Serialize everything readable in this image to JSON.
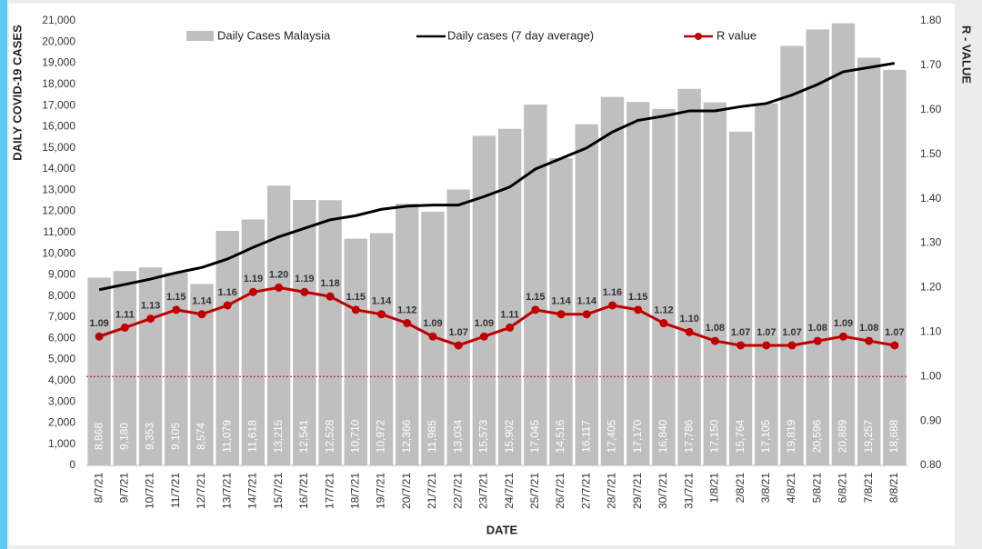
{
  "chart_data": {
    "type": "combo",
    "x_label": "DATE",
    "y_label": "DAILY COVID-19 CASES",
    "y2_label": "R - VALUE",
    "categories": [
      "8/7/21",
      "9/7/21",
      "10/7/21",
      "11/7/21",
      "12/7/21",
      "13/7/21",
      "14/7/21",
      "15/7/21",
      "16/7/21",
      "17/7/21",
      "18/7/21",
      "19/7/21",
      "20/7/21",
      "21/7/21",
      "22/7/21",
      "23/7/21",
      "24/7/21",
      "25/7/21",
      "26/7/21",
      "27/7/21",
      "28/7/21",
      "29/7/21",
      "30/7/21",
      "31/7/21",
      "1/8/21",
      "2/8/21",
      "3/8/21",
      "4/8/21",
      "5/8/21",
      "6/8/21",
      "7/8/21",
      "8/8/21"
    ],
    "series": [
      {
        "name": "Daily Cases Malaysia",
        "type": "bar",
        "color": "#bfbfbf",
        "values": [
          8868,
          9180,
          9353,
          9105,
          8574,
          11079,
          11618,
          13215,
          12541,
          12528,
          10710,
          10972,
          12366,
          11985,
          13034,
          15573,
          15902,
          17045,
          14516,
          16117,
          17405,
          17170,
          16840,
          17786,
          17150,
          15764,
          17105,
          19819,
          20596,
          20889,
          19257,
          18688
        ],
        "value_labels": [
          "8,868",
          "9,180",
          "9,353",
          "9,105",
          "8,574",
          "11,079",
          "11,618",
          "13,215",
          "12,541",
          "12,528",
          "10,710",
          "10,972",
          "12,366",
          "11,985",
          "13,034",
          "15,573",
          "15,902",
          "17,045",
          "14,516",
          "16,117",
          "17,405",
          "17,170",
          "16,840",
          "17,786",
          "17,150",
          "15,764",
          "17,105",
          "19,819",
          "20,596",
          "20,889",
          "19,257",
          "18,688"
        ]
      },
      {
        "name": "Daily cases (7 day average)",
        "type": "line",
        "color": "#000000",
        "values": [
          8300,
          8550,
          8800,
          9100,
          9350,
          9750,
          10300,
          10800,
          11200,
          11600,
          11800,
          12100,
          12250,
          12300,
          12300,
          12700,
          13150,
          14000,
          14500,
          15000,
          15750,
          16300,
          16500,
          16750,
          16750,
          16950,
          17100,
          17500,
          18000,
          18600,
          18800,
          19000
        ]
      },
      {
        "name": "R value",
        "type": "line",
        "axis": "y2",
        "color": "#c00000",
        "markers": true,
        "values": [
          1.09,
          1.11,
          1.13,
          1.15,
          1.14,
          1.16,
          1.19,
          1.2,
          1.19,
          1.18,
          1.15,
          1.14,
          1.12,
          1.09,
          1.07,
          1.09,
          1.11,
          1.15,
          1.14,
          1.14,
          1.16,
          1.15,
          1.12,
          1.1,
          1.08,
          1.07,
          1.07,
          1.07,
          1.08,
          1.09,
          1.08,
          1.07
        ],
        "value_labels": [
          "1.09",
          "1.11",
          "1.13",
          "1.15",
          "1.14",
          "1.16",
          "1.19",
          "1.20",
          "1.19",
          "1.18",
          "1.15",
          "1.14",
          "1.12",
          "1.09",
          "1.07",
          "1.09",
          "1.11",
          "1.15",
          "1.14",
          "1.14",
          "1.16",
          "1.15",
          "1.12",
          "1.10",
          "1.08",
          "1.07",
          "1.07",
          "1.07",
          "1.08",
          "1.09",
          "1.08",
          "1.07"
        ]
      }
    ],
    "ylim": [
      0,
      21000
    ],
    "yticks": [
      {
        "value": 0,
        "label": "0"
      },
      {
        "value": 1000,
        "label": "1,000"
      },
      {
        "value": 2000,
        "label": "2,000"
      },
      {
        "value": 3000,
        "label": "3,000"
      },
      {
        "value": 4000,
        "label": "4,000"
      },
      {
        "value": 5000,
        "label": "5,000"
      },
      {
        "value": 6000,
        "label": "6,000"
      },
      {
        "value": 7000,
        "label": "7,000"
      },
      {
        "value": 8000,
        "label": "8,000"
      },
      {
        "value": 9000,
        "label": "9,000"
      },
      {
        "value": 10000,
        "label": "10,000"
      },
      {
        "value": 11000,
        "label": "11,000"
      },
      {
        "value": 12000,
        "label": "12,000"
      },
      {
        "value": 13000,
        "label": "13,000"
      },
      {
        "value": 14000,
        "label": "14,000"
      },
      {
        "value": 15000,
        "label": "15,000"
      },
      {
        "value": 16000,
        "label": "16,000"
      },
      {
        "value": 17000,
        "label": "17,000"
      },
      {
        "value": 18000,
        "label": "18,000"
      },
      {
        "value": 19000,
        "label": "19,000"
      },
      {
        "value": 20000,
        "label": "20,000"
      },
      {
        "value": 21000,
        "label": "21,000"
      }
    ],
    "y2lim": [
      0.8,
      1.8
    ],
    "y2ticks": [
      {
        "value": 0.8,
        "label": "0.80"
      },
      {
        "value": 0.9,
        "label": "0.90"
      },
      {
        "value": 1.0,
        "label": "1.00"
      },
      {
        "value": 1.1,
        "label": "1.10"
      },
      {
        "value": 1.2,
        "label": "1.20"
      },
      {
        "value": 1.3,
        "label": "1.30"
      },
      {
        "value": 1.4,
        "label": "1.40"
      },
      {
        "value": 1.5,
        "label": "1.50"
      },
      {
        "value": 1.6,
        "label": "1.60"
      },
      {
        "value": 1.7,
        "label": "1.70"
      },
      {
        "value": 1.8,
        "label": "1.80"
      }
    ],
    "y2_reference_line": {
      "value": 1.0,
      "color": "#c00000"
    },
    "grid": false,
    "legend": "top"
  }
}
